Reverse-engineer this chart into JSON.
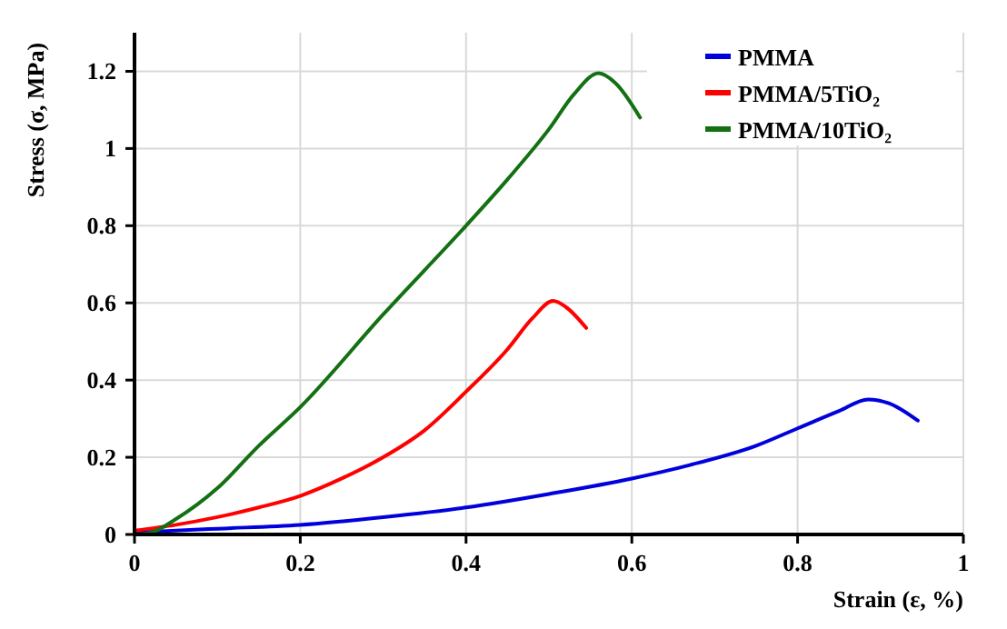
{
  "chart_data": {
    "type": "line",
    "xlabel": "Strain (ε, %)",
    "ylabel": "Stress (σ, MPa)",
    "xlim": [
      0,
      1
    ],
    "ylim": [
      0,
      1.3
    ],
    "xticks": [
      0,
      0.2,
      0.4,
      0.6,
      0.8,
      1
    ],
    "yticks": [
      0,
      0.2,
      0.4,
      0.6,
      0.8,
      1,
      1.2
    ],
    "grid": true,
    "legend": "top right",
    "line_style": "solid",
    "marker": "none",
    "series": [
      {
        "name": "PMMA",
        "color": "#0000dd",
        "x": [
          0,
          0.1,
          0.2,
          0.3,
          0.4,
          0.5,
          0.6,
          0.67,
          0.75,
          0.8,
          0.85,
          0.885,
          0.91,
          0.945
        ],
        "values": [
          0.005,
          0.015,
          0.025,
          0.045,
          0.07,
          0.105,
          0.145,
          0.18,
          0.23,
          0.275,
          0.32,
          0.35,
          0.34,
          0.295
        ]
      },
      {
        "name": "PMMA/5TiO₂",
        "color": "#ff0000",
        "x": [
          0,
          0.05,
          0.1,
          0.15,
          0.2,
          0.25,
          0.3,
          0.35,
          0.4,
          0.45,
          0.48,
          0.505,
          0.52,
          0.545
        ],
        "values": [
          0.01,
          0.025,
          0.045,
          0.07,
          0.1,
          0.145,
          0.2,
          0.27,
          0.37,
          0.48,
          0.56,
          0.605,
          0.59,
          0.535
        ]
      },
      {
        "name": "PMMA/10TiO₂",
        "color": "#137013",
        "x": [
          0,
          0.02,
          0.05,
          0.1,
          0.15,
          0.2,
          0.3,
          0.4,
          0.45,
          0.5,
          0.53,
          0.56,
          0.58,
          0.61
        ],
        "values": [
          0,
          0.005,
          0.04,
          0.12,
          0.23,
          0.33,
          0.57,
          0.8,
          0.92,
          1.05,
          1.14,
          1.195,
          1.17,
          1.08
        ]
      }
    ]
  }
}
